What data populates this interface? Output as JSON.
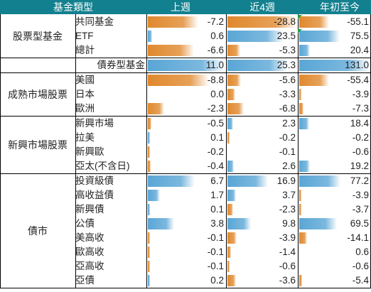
{
  "header": {
    "category": "基金類型",
    "col1": "上週",
    "col2": "近4週",
    "col3": "年初至今"
  },
  "groups": [
    {
      "name": "股票型基金",
      "full": false,
      "rows": [
        {
          "label": "共同基金",
          "values": [
            -7.2,
            -28.8,
            -55.1
          ]
        },
        {
          "label": "ETF",
          "values": [
            0.6,
            23.5,
            75.5
          ]
        },
        {
          "label": "總計",
          "values": [
            -6.6,
            -5.3,
            20.4
          ]
        }
      ]
    },
    {
      "name": "",
      "full": true,
      "rows": [
        {
          "label": "債券型基金",
          "values": [
            11.0,
            25.3,
            131.0
          ]
        }
      ]
    },
    {
      "name": "成熟市場股票",
      "full": false,
      "rows": [
        {
          "label": "美國",
          "values": [
            -8.8,
            -5.6,
            -55.4
          ]
        },
        {
          "label": "日本",
          "values": [
            0.0,
            -3.3,
            -3.9
          ]
        },
        {
          "label": "歐洲",
          "values": [
            -2.3,
            -6.8,
            -7.3
          ]
        }
      ]
    },
    {
      "name": "新興市場股票",
      "full": false,
      "rows": [
        {
          "label": "新興市場",
          "values": [
            -0.5,
            2.3,
            18.4
          ]
        },
        {
          "label": "拉美",
          "values": [
            0.1,
            -0.2,
            -0.2
          ]
        },
        {
          "label": "新興歐",
          "values": [
            -0.2,
            -0.1,
            -0.6
          ]
        },
        {
          "label": "亞太(不含日)",
          "values": [
            -0.4,
            2.6,
            19.2
          ]
        }
      ]
    },
    {
      "name": "債市",
      "full": false,
      "rows": [
        {
          "label": "投資級債",
          "values": [
            6.7,
            16.9,
            77.2
          ]
        },
        {
          "label": "高收益債",
          "values": [
            1.7,
            3.7,
            -3.9
          ]
        },
        {
          "label": "新興債",
          "values": [
            0.1,
            -2.3,
            -3.7
          ]
        },
        {
          "label": "公債",
          "values": [
            3.8,
            9.8,
            69.5
          ]
        },
        {
          "label": "美高收",
          "values": [
            -0.1,
            -3.9,
            -14.1
          ]
        },
        {
          "label": "歐高收",
          "values": [
            -0.1,
            -1.4,
            0.6
          ]
        },
        {
          "label": "亞高收",
          "values": [
            -0.1,
            -0.6,
            -0.6
          ]
        },
        {
          "label": "亞債",
          "values": [
            0.2,
            -3.6,
            -5.4
          ]
        }
      ]
    }
  ],
  "colors": {
    "header_bg": "#12808f",
    "positive": "#5aa6d6",
    "negative": "#e0892e",
    "marker": "#1f9e3a"
  }
}
